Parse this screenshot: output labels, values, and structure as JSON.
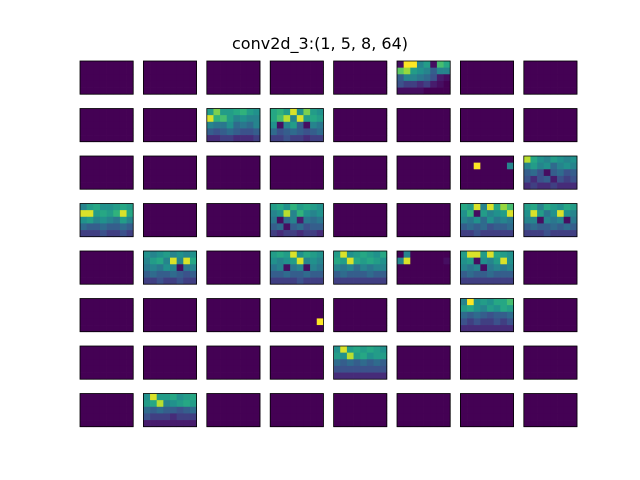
{
  "chart_data": {
    "type": "heatmap",
    "title": "conv2d_3:(1, 5, 8, 64)",
    "layout": "8x8 grid of feature-map channels",
    "map_rows": 5,
    "map_cols": 8,
    "colormap": "viridis",
    "value_range": [
      0,
      1
    ],
    "axes_ticks": false,
    "default_value": 0,
    "channels": [
      {
        "index": 5,
        "values": [
          [
            0.05,
            1.0,
            1.0,
            0.45,
            0.55,
            0.05,
            0.7,
            0.6
          ],
          [
            0.75,
            0.85,
            0.55,
            0.5,
            0.45,
            0.3,
            0.45,
            0.45
          ],
          [
            0.3,
            0.45,
            0.45,
            0.4,
            0.35,
            0.25,
            0.1,
            0.05
          ],
          [
            0.25,
            0.2,
            0.2,
            0.15,
            0.2,
            0.1,
            0.05,
            0.0
          ],
          [
            0.05,
            0.05,
            0.05,
            0.05,
            0.0,
            0.0,
            0.0,
            0.0
          ]
        ]
      },
      {
        "index": 10,
        "values": [
          [
            0.55,
            0.8,
            0.55,
            0.55,
            0.6,
            0.65,
            0.55,
            0.5
          ],
          [
            0.95,
            0.65,
            0.7,
            0.55,
            0.45,
            0.5,
            0.45,
            0.45
          ],
          [
            0.45,
            0.4,
            0.4,
            0.5,
            0.35,
            0.4,
            0.35,
            0.45
          ],
          [
            0.3,
            0.25,
            0.3,
            0.35,
            0.3,
            0.25,
            0.25,
            0.3
          ],
          [
            0.15,
            0.15,
            0.2,
            0.2,
            0.15,
            0.15,
            0.15,
            0.2
          ]
        ]
      },
      {
        "index": 11,
        "values": [
          [
            0.6,
            0.65,
            0.55,
            0.95,
            0.5,
            0.8,
            0.55,
            0.5
          ],
          [
            0.6,
            0.7,
            0.9,
            0.45,
            0.95,
            0.55,
            0.6,
            0.55
          ],
          [
            0.5,
            0.05,
            0.45,
            0.55,
            0.3,
            0.05,
            0.45,
            0.4
          ],
          [
            0.35,
            0.25,
            0.3,
            0.35,
            0.3,
            0.25,
            0.3,
            0.35
          ],
          [
            0.2,
            0.2,
            0.25,
            0.2,
            0.2,
            0.15,
            0.2,
            0.2
          ]
        ]
      },
      {
        "index": 22,
        "values": [
          [
            0,
            0,
            0,
            0,
            0,
            0,
            0,
            0
          ],
          [
            0,
            0,
            1.0,
            0,
            0,
            0,
            0,
            0.45
          ],
          [
            0,
            0,
            0,
            0,
            0,
            0,
            0,
            0
          ],
          [
            0,
            0,
            0,
            0,
            0,
            0,
            0,
            0
          ],
          [
            0,
            0,
            0,
            0,
            0,
            0,
            0,
            0
          ]
        ]
      },
      {
        "index": 23,
        "values": [
          [
            0.9,
            0.6,
            0.5,
            0.45,
            0.55,
            0.5,
            0.45,
            0.5
          ],
          [
            0.45,
            0.55,
            0.45,
            0.5,
            0.35,
            0.45,
            0.5,
            0.45
          ],
          [
            0.3,
            0.35,
            0.25,
            0.05,
            0.3,
            0.35,
            0.25,
            0.3
          ],
          [
            0.25,
            0.15,
            0.25,
            0.3,
            0.1,
            0.25,
            0.2,
            0.25
          ],
          [
            0.15,
            0.2,
            0.15,
            0.15,
            0.2,
            0.15,
            0.15,
            0.15
          ]
        ]
      },
      {
        "index": 24,
        "values": [
          [
            0.45,
            0.55,
            0.6,
            0.5,
            0.5,
            0.55,
            0.6,
            0.55
          ],
          [
            0.95,
            0.95,
            0.55,
            0.6,
            0.55,
            0.65,
            0.95,
            0.6
          ],
          [
            0.5,
            0.55,
            0.45,
            0.5,
            0.45,
            0.4,
            0.55,
            0.45
          ],
          [
            0.35,
            0.3,
            0.3,
            0.35,
            0.3,
            0.3,
            0.35,
            0.3
          ],
          [
            0.2,
            0.2,
            0.2,
            0.25,
            0.2,
            0.2,
            0.25,
            0.2
          ]
        ]
      },
      {
        "index": 27,
        "values": [
          [
            0.55,
            0.6,
            0.5,
            0.65,
            0.55,
            0.6,
            0.55,
            0.5
          ],
          [
            0.45,
            0.5,
            0.9,
            0.45,
            0.65,
            0.5,
            0.45,
            0.5
          ],
          [
            0.4,
            0.05,
            0.35,
            0.45,
            0.1,
            0.4,
            0.35,
            0.4
          ],
          [
            0.3,
            0.35,
            0.05,
            0.3,
            0.35,
            0.25,
            0.3,
            0.3
          ],
          [
            0.2,
            0.15,
            0.2,
            0.2,
            0.15,
            0.2,
            0.2,
            0.15
          ]
        ]
      },
      {
        "index": 30,
        "values": [
          [
            0.6,
            0.55,
            0.95,
            0.45,
            0.95,
            0.6,
            0.85,
            0.7
          ],
          [
            0.5,
            0.65,
            0.05,
            0.55,
            0.45,
            0.5,
            0.55,
            0.95
          ],
          [
            0.45,
            0.4,
            0.5,
            0.35,
            0.5,
            0.4,
            0.45,
            0.4
          ],
          [
            0.3,
            0.35,
            0.3,
            0.35,
            0.25,
            0.3,
            0.3,
            0.35
          ],
          [
            0.2,
            0.2,
            0.25,
            0.2,
            0.2,
            0.2,
            0.2,
            0.2
          ]
        ]
      },
      {
        "index": 31,
        "values": [
          [
            0.55,
            0.6,
            0.45,
            0.6,
            0.55,
            0.5,
            0.6,
            0.55
          ],
          [
            0.5,
            0.95,
            0.55,
            0.4,
            0.5,
            0.95,
            0.5,
            0.45
          ],
          [
            0.45,
            0.45,
            0.05,
            0.45,
            0.4,
            0.45,
            0.05,
            0.4
          ],
          [
            0.3,
            0.35,
            0.3,
            0.3,
            0.35,
            0.3,
            0.35,
            0.3
          ],
          [
            0.2,
            0.2,
            0.2,
            0.25,
            0.2,
            0.2,
            0.2,
            0.2
          ]
        ]
      },
      {
        "index": 33,
        "values": [
          [
            0.5,
            0.45,
            0.5,
            0.55,
            0.45,
            0.5,
            0.45,
            0.5
          ],
          [
            0.45,
            0.55,
            0.6,
            0.45,
            0.95,
            0.45,
            0.95,
            0.6
          ],
          [
            0.4,
            0.45,
            0.4,
            0.5,
            0.45,
            0.05,
            0.4,
            0.45
          ],
          [
            0.3,
            0.35,
            0.3,
            0.3,
            0.35,
            0.3,
            0.25,
            0.3
          ],
          [
            0.2,
            0.2,
            0.25,
            0.2,
            0.2,
            0.25,
            0.2,
            0.2
          ]
        ]
      },
      {
        "index": 35,
        "values": [
          [
            0.55,
            0.6,
            0.55,
            0.95,
            0.5,
            0.6,
            0.55,
            0.5
          ],
          [
            0.5,
            0.45,
            0.5,
            0.55,
            0.95,
            0.45,
            0.5,
            0.45
          ],
          [
            0.4,
            0.45,
            0.05,
            0.4,
            0.45,
            0.05,
            0.45,
            0.4
          ],
          [
            0.3,
            0.3,
            0.35,
            0.3,
            0.3,
            0.35,
            0.3,
            0.3
          ],
          [
            0.2,
            0.2,
            0.2,
            0.2,
            0.25,
            0.2,
            0.2,
            0.2
          ]
        ]
      },
      {
        "index": 36,
        "values": [
          [
            0.55,
            0.95,
            0.5,
            0.55,
            0.6,
            0.55,
            0.5,
            0.6
          ],
          [
            0.6,
            0.55,
            0.95,
            0.6,
            0.55,
            0.6,
            0.55,
            0.5
          ],
          [
            0.45,
            0.4,
            0.45,
            0.35,
            0.45,
            0.4,
            0.45,
            0.45
          ],
          [
            0.3,
            0.35,
            0.3,
            0.3,
            0.3,
            0.35,
            0.3,
            0.3
          ],
          [
            0.2,
            0.2,
            0.2,
            0.2,
            0.2,
            0.2,
            0.2,
            0.2
          ]
        ]
      },
      {
        "index": 37,
        "values": [
          [
            0,
            0.45,
            0,
            0,
            0,
            0,
            0,
            0
          ],
          [
            0.45,
            0.95,
            0,
            0,
            0,
            0,
            0,
            0.05
          ],
          [
            0,
            0,
            0,
            0,
            0,
            0,
            0,
            0
          ],
          [
            0,
            0,
            0,
            0,
            0,
            0,
            0,
            0
          ],
          [
            0,
            0,
            0,
            0,
            0,
            0,
            0,
            0
          ]
        ]
      },
      {
        "index": 38,
        "values": [
          [
            0.55,
            0.95,
            0.95,
            0.55,
            0.95,
            0.6,
            0.55,
            0.5
          ],
          [
            0.5,
            0.55,
            0.05,
            0.5,
            0.45,
            0.55,
            0.95,
            0.5
          ],
          [
            0.45,
            0.4,
            0.45,
            0.05,
            0.4,
            0.45,
            0.4,
            0.45
          ],
          [
            0.3,
            0.35,
            0.3,
            0.3,
            0.35,
            0.3,
            0.3,
            0.3
          ],
          [
            0.2,
            0.2,
            0.2,
            0.2,
            0.2,
            0.2,
            0.2,
            0.2
          ]
        ]
      },
      {
        "index": 43,
        "values": [
          [
            0,
            0,
            0,
            0,
            0,
            0,
            0,
            0
          ],
          [
            0,
            0,
            0,
            0,
            0,
            0,
            0,
            0
          ],
          [
            0,
            0,
            0,
            0,
            0,
            0,
            0,
            0
          ],
          [
            0,
            0,
            0,
            0,
            0,
            0,
            0,
            1.0
          ],
          [
            0,
            0,
            0,
            0,
            0,
            0,
            0,
            0
          ]
        ]
      },
      {
        "index": 46,
        "values": [
          [
            0.45,
            1.0,
            0.5,
            0.55,
            0.5,
            0.6,
            0.6,
            0.7
          ],
          [
            0.55,
            0.6,
            0.5,
            0.45,
            0.55,
            0.5,
            0.6,
            0.55
          ],
          [
            0.35,
            0.3,
            0.35,
            0.3,
            0.25,
            0.3,
            0.3,
            0.35
          ],
          [
            0.25,
            0.2,
            0.25,
            0.2,
            0.2,
            0.25,
            0.2,
            0.25
          ],
          [
            0.15,
            0.15,
            0.15,
            0.15,
            0.15,
            0.15,
            0.15,
            0.15
          ]
        ]
      },
      {
        "index": 52,
        "values": [
          [
            0.5,
            0.95,
            0.55,
            0.6,
            0.55,
            0.6,
            0.55,
            0.5
          ],
          [
            0.55,
            0.5,
            0.9,
            0.55,
            0.6,
            0.5,
            0.55,
            0.55
          ],
          [
            0.35,
            0.3,
            0.35,
            0.3,
            0.35,
            0.3,
            0.35,
            0.3
          ],
          [
            0.25,
            0.25,
            0.25,
            0.25,
            0.25,
            0.25,
            0.25,
            0.25
          ],
          [
            0.15,
            0.15,
            0.15,
            0.15,
            0.15,
            0.15,
            0.15,
            0.15
          ]
        ]
      },
      {
        "index": 57,
        "values": [
          [
            0.5,
            0.95,
            0.55,
            0.55,
            0.6,
            0.5,
            0.55,
            0.6
          ],
          [
            0.55,
            0.6,
            0.9,
            0.45,
            0.5,
            0.55,
            0.6,
            0.55
          ],
          [
            0.35,
            0.3,
            0.35,
            0.3,
            0.3,
            0.25,
            0.3,
            0.35
          ],
          [
            0.25,
            0.2,
            0.2,
            0.2,
            0.15,
            0.2,
            0.2,
            0.2
          ],
          [
            0.1,
            0.1,
            0.1,
            0.1,
            0.1,
            0.1,
            0.1,
            0.1
          ]
        ]
      }
    ]
  }
}
